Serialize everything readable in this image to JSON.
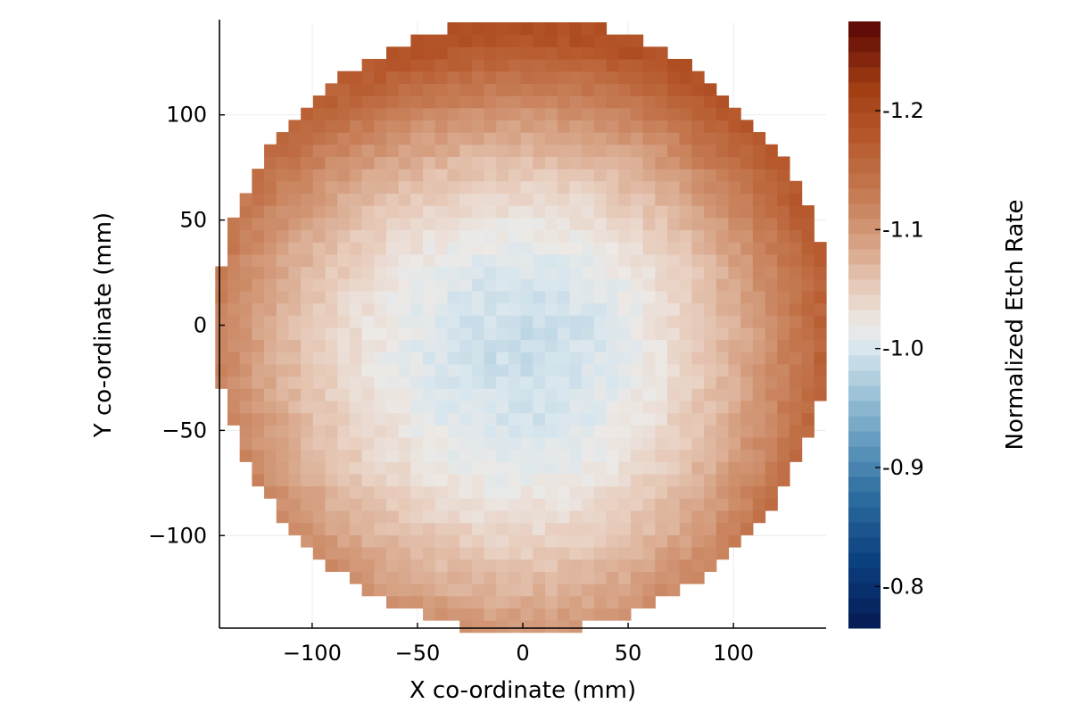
{
  "chart_data": {
    "type": "heatmap",
    "title": "",
    "xlabel": "X co-ordinate (mm)",
    "ylabel": "Y co-ordinate (mm)",
    "xlim": [
      -144,
      144
    ],
    "ylim": [
      -144,
      144
    ],
    "xticks": [
      {
        "value": -100,
        "label": "−100"
      },
      {
        "value": -50,
        "label": "−50"
      },
      {
        "value": 0,
        "label": "0"
      },
      {
        "value": 50,
        "label": "50"
      },
      {
        "value": 100,
        "label": "100"
      }
    ],
    "yticks": [
      {
        "value": -100,
        "label": "−100"
      },
      {
        "value": -50,
        "label": "−50"
      },
      {
        "value": 0,
        "label": "0"
      },
      {
        "value": 50,
        "label": "50"
      },
      {
        "value": 100,
        "label": "100"
      }
    ],
    "grid": true,
    "wafer_radius_mm": 146,
    "cell_size_mm": 5.8,
    "colorbar": {
      "label": "Normalized Etch Rate",
      "range": [
        0.765,
        1.275
      ],
      "ticks": [
        {
          "value": 0.8,
          "label": "0.8"
        },
        {
          "value": 0.9,
          "label": "0.9"
        },
        {
          "value": 1.0,
          "label": "1.0"
        },
        {
          "value": 1.1,
          "label": "1.1"
        },
        {
          "value": 1.2,
          "label": "1.2"
        }
      ],
      "colormap": [
        [
          0.765,
          "#041a52"
        ],
        [
          0.82,
          "#0b3f7e"
        ],
        [
          0.88,
          "#2f6fa0"
        ],
        [
          0.93,
          "#6ea3c4"
        ],
        [
          0.97,
          "#a9cadc"
        ],
        [
          1.0,
          "#d8e6ee"
        ],
        [
          1.02,
          "#ece9e6"
        ],
        [
          1.05,
          "#e8cdbd"
        ],
        [
          1.09,
          "#d6a183"
        ],
        [
          1.13,
          "#c57a52"
        ],
        [
          1.18,
          "#b5562a"
        ],
        [
          1.22,
          "#a03e12"
        ],
        [
          1.275,
          "#5a0505"
        ]
      ]
    },
    "field_model": {
      "description_values": "normalized etch rate sampled on a regular grid over the wafer",
      "center_value": 0.99,
      "center_offset_mm": [
        2,
        -8
      ],
      "edge_value_left": 1.12,
      "edge_value_right": 1.175,
      "edge_value_top": 1.19,
      "edge_value_bottom": 1.115,
      "radial_exponent": 1.9
    }
  }
}
